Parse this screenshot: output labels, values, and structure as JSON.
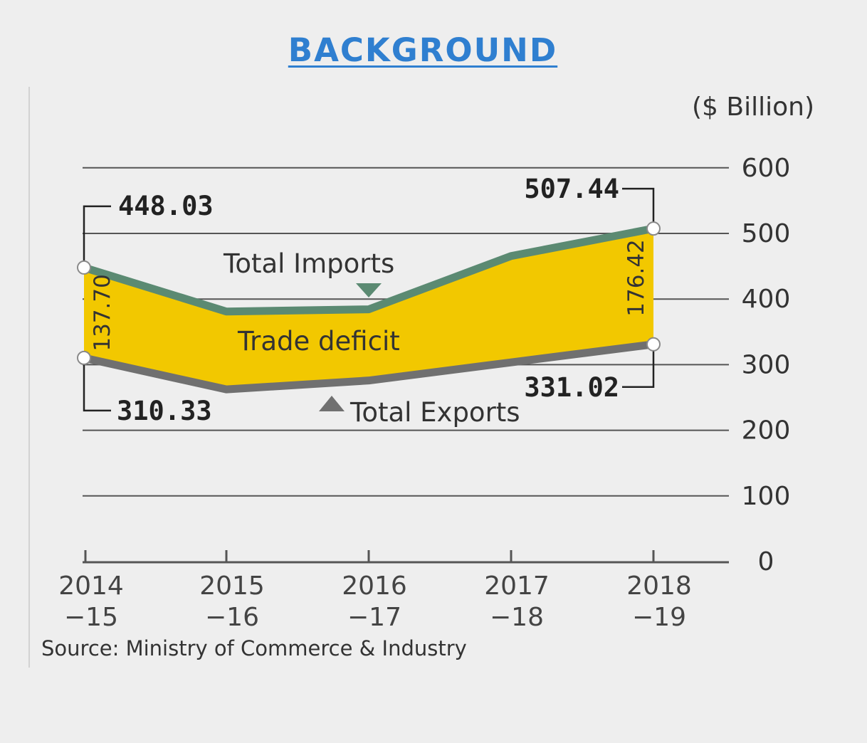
{
  "title": "BACKGROUND",
  "unit_label": "($ Billion)",
  "source": "Source: Ministry of Commerce & Industry",
  "colors": {
    "imports_line": "#5b8a72",
    "exports_line": "#707070",
    "deficit_fill": "#f2c800",
    "title": "#2f7fd0"
  },
  "chart_data": {
    "type": "area",
    "categories": [
      "2014\n−15",
      "2015\n−16",
      "2016\n−17",
      "2017\n−18",
      "2018\n−19"
    ],
    "x_labels": [
      [
        "2014",
        "−15"
      ],
      [
        "2015",
        "−16"
      ],
      [
        "2016",
        "−17"
      ],
      [
        "2017",
        "−18"
      ],
      [
        "2018",
        "−19"
      ]
    ],
    "series": [
      {
        "name": "Total Imports",
        "values": [
          448.03,
          381,
          384.36,
          465.58,
          507.44
        ]
      },
      {
        "name": "Total Exports",
        "values": [
          310.33,
          262.29,
          275.85,
          303.53,
          331.02
        ]
      }
    ],
    "fill_between": {
      "name": "Trade deficit",
      "upper": "Total Imports",
      "lower": "Total Exports"
    },
    "ylim": [
      0,
      600
    ],
    "yticks": [
      0,
      100,
      200,
      300,
      400,
      500,
      600
    ],
    "grid": true,
    "annotations": {
      "imports_start": "448.03",
      "imports_end": "507.44",
      "exports_start": "310.33",
      "exports_end": "331.02",
      "deficit_start": "137.70",
      "deficit_end": "176.42"
    }
  }
}
